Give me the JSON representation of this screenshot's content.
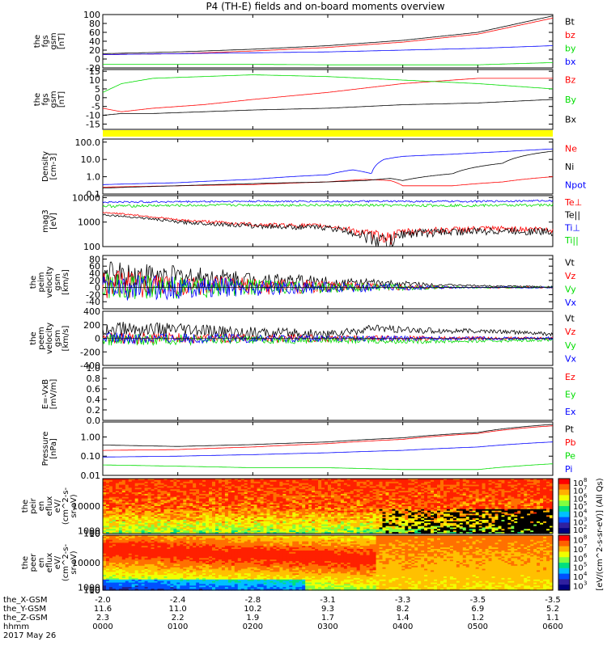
{
  "title": "P4 (TH-E) fields and on-board moments overview",
  "chart_data": [
    {
      "type": "line",
      "ylabel": [
        "the",
        "fgs",
        "gsm",
        "[nT]"
      ],
      "ylim": [
        -20,
        100
      ],
      "yticks": [
        "100",
        "80",
        "60",
        "40",
        "20",
        "0",
        "-20"
      ],
      "ytick_values": [
        100,
        80,
        60,
        40,
        20,
        0,
        -20
      ],
      "series": [
        {
          "name": "Bt",
          "color": "#000000",
          "x": [
            0,
            60,
            120,
            180,
            240,
            300,
            360
          ],
          "values": [
            12,
            16,
            22,
            30,
            42,
            60,
            97
          ]
        },
        {
          "name": "bz",
          "color": "#ff0000",
          "x": [
            0,
            60,
            120,
            180,
            240,
            300,
            360
          ],
          "values": [
            10,
            12,
            18,
            26,
            38,
            56,
            92
          ]
        },
        {
          "name": "by",
          "color": "#00dd00",
          "x": [
            0,
            60,
            120,
            180,
            240,
            300,
            360
          ],
          "values": [
            -12,
            -12,
            -12,
            -13,
            -13,
            -13,
            -8
          ]
        },
        {
          "name": "bx",
          "color": "#0000ff",
          "x": [
            0,
            60,
            120,
            180,
            240,
            300,
            360
          ],
          "values": [
            10,
            12,
            14,
            16,
            20,
            24,
            30
          ]
        }
      ]
    },
    {
      "type": "line",
      "ylabel": [
        "the",
        "fgs",
        "gsm",
        "[nT]"
      ],
      "ylim": [
        -18,
        16
      ],
      "yticks": [
        "15",
        "10",
        "5",
        "0",
        "-5",
        "-10",
        "-15"
      ],
      "ytick_values": [
        15,
        10,
        5,
        0,
        -5,
        -10,
        -15
      ],
      "series": [
        {
          "name": "Bz",
          "color": "#ff0000",
          "x": [
            0,
            15,
            40,
            80,
            120,
            180,
            240,
            300,
            360
          ],
          "values": [
            -6,
            -8,
            -6,
            -4,
            -1,
            3,
            8,
            11,
            11
          ]
        },
        {
          "name": "By",
          "color": "#00dd00",
          "x": [
            0,
            15,
            40,
            80,
            120,
            180,
            240,
            300,
            360
          ],
          "values": [
            3,
            8,
            11,
            12,
            13,
            12,
            10,
            8,
            5
          ]
        },
        {
          "name": "Bx",
          "color": "#000000",
          "x": [
            0,
            15,
            40,
            80,
            120,
            180,
            240,
            300,
            360
          ],
          "values": [
            -10,
            -9,
            -9,
            -8,
            -7,
            -6,
            -4,
            -3,
            -1
          ]
        }
      ]
    },
    {
      "type": "line",
      "scale": "log",
      "ylabel": [
        "Density",
        "[cm-3]"
      ],
      "ylim": [
        0.1,
        150
      ],
      "yticks": [
        "100.0",
        "10.0",
        "1.0",
        "0.1"
      ],
      "ytick_values": [
        100,
        10,
        1,
        0.1
      ],
      "series": [
        {
          "name": "Ne",
          "color": "#ff0000",
          "x": [
            0,
            60,
            120,
            180,
            210,
            230,
            240,
            280,
            320,
            360
          ],
          "values": [
            0.25,
            0.3,
            0.35,
            0.5,
            0.7,
            0.6,
            0.3,
            0.3,
            0.5,
            1.0
          ]
        },
        {
          "name": "Ni",
          "color": "#000000",
          "x": [
            0,
            60,
            120,
            180,
            210,
            230,
            240,
            280,
            320,
            360
          ],
          "values": [
            0.22,
            0.3,
            0.4,
            0.5,
            0.6,
            0.8,
            0.6,
            1.5,
            6,
            30
          ]
        },
        {
          "name": "Npot",
          "color": "#0000ff",
          "x": [
            0,
            60,
            120,
            180,
            200,
            215,
            225,
            240,
            280,
            320,
            360
          ],
          "values": [
            0.35,
            0.45,
            0.7,
            1.3,
            2.5,
            1.5,
            10,
            15,
            20,
            28,
            40
          ]
        }
      ]
    },
    {
      "type": "line",
      "scale": "log",
      "ylabel": [
        "mag3",
        "[eV]"
      ],
      "ylim": [
        100,
        12000
      ],
      "yticks": [
        "10000",
        "1000",
        "100"
      ],
      "ytick_values": [
        10000,
        1000,
        100
      ],
      "series": [
        {
          "name": "Te⊥",
          "color": "#ff0000",
          "x": [
            0,
            60,
            120,
            180,
            210,
            230,
            240,
            280,
            320,
            360
          ],
          "values": [
            2500,
            1200,
            800,
            700,
            350,
            250,
            400,
            500,
            550,
            500
          ]
        },
        {
          "name": "Te||",
          "color": "#000000",
          "x": [
            0,
            60,
            120,
            180,
            210,
            230,
            240,
            280,
            320,
            360
          ],
          "values": [
            2000,
            1000,
            700,
            600,
            280,
            150,
            350,
            420,
            450,
            420
          ]
        },
        {
          "name": "Ti⊥",
          "color": "#0000ff",
          "x": [
            0,
            60,
            120,
            180,
            240,
            300,
            360
          ],
          "values": [
            6500,
            6800,
            7000,
            7000,
            7000,
            7000,
            7500
          ]
        },
        {
          "name": "Ti||",
          "color": "#00dd00",
          "x": [
            0,
            60,
            120,
            180,
            240,
            300,
            360
          ],
          "values": [
            4500,
            4800,
            5000,
            4900,
            4800,
            4800,
            5000
          ]
        }
      ]
    },
    {
      "type": "line",
      "ylabel": [
        "the",
        "peim",
        "velocity",
        "gsm",
        "[km/s]"
      ],
      "ylim": [
        -60,
        90
      ],
      "yticks": [
        "80",
        "60",
        "40",
        "20",
        "0",
        "-20",
        "-40"
      ],
      "ytick_values": [
        80,
        60,
        40,
        20,
        0,
        -20,
        -40
      ],
      "series": [
        {
          "name": "Vt",
          "color": "#000000",
          "x": [
            0,
            60,
            120,
            180,
            240,
            300,
            360
          ],
          "values": [
            40,
            30,
            22,
            15,
            10,
            5,
            2
          ]
        },
        {
          "name": "Vz",
          "color": "#ff0000",
          "x": [
            0,
            60,
            120,
            180,
            240,
            300,
            360
          ],
          "values": [
            10,
            5,
            3,
            2,
            1,
            0,
            0
          ]
        },
        {
          "name": "Vy",
          "color": "#00dd00",
          "x": [
            0,
            60,
            120,
            180,
            240,
            300,
            360
          ],
          "values": [
            0,
            0,
            0,
            0,
            0,
            0,
            0
          ]
        },
        {
          "name": "Vx",
          "color": "#0000ff",
          "x": [
            0,
            60,
            120,
            180,
            240,
            300,
            360
          ],
          "values": [
            0,
            0,
            0,
            0,
            0,
            0,
            0
          ]
        }
      ]
    },
    {
      "type": "line",
      "ylabel": [
        "the",
        "peem",
        "velocity",
        "gsm",
        "[km/s]"
      ],
      "ylim": [
        -400,
        400
      ],
      "yticks": [
        "400",
        "200",
        "0",
        "-200",
        "-400"
      ],
      "ytick_values": [
        400,
        200,
        0,
        -200,
        -400
      ],
      "series": [
        {
          "name": "Vt",
          "color": "#000000",
          "x": [
            0,
            60,
            120,
            180,
            220,
            240,
            280,
            320,
            360
          ],
          "values": [
            150,
            120,
            80,
            60,
            150,
            120,
            110,
            100,
            60
          ]
        },
        {
          "name": "Vz",
          "color": "#ff0000",
          "x": [
            0,
            60,
            120,
            180,
            240,
            300,
            360
          ],
          "values": [
            0,
            0,
            0,
            0,
            0,
            0,
            0
          ]
        },
        {
          "name": "Vy",
          "color": "#00dd00",
          "x": [
            0,
            60,
            120,
            180,
            240,
            300,
            360
          ],
          "values": [
            -20,
            -20,
            -20,
            -20,
            -40,
            -40,
            -20
          ]
        },
        {
          "name": "Vx",
          "color": "#0000ff",
          "x": [
            0,
            60,
            120,
            180,
            240,
            300,
            360
          ],
          "values": [
            0,
            0,
            0,
            0,
            0,
            0,
            0
          ]
        }
      ]
    },
    {
      "type": "line",
      "ylabel": [
        "E=-VxB",
        "[mV/m]"
      ],
      "ylim": [
        0,
        1
      ],
      "yticks": [
        "1.0",
        "0.8",
        "0.6",
        "0.4",
        "0.2",
        "0.0"
      ],
      "ytick_values": [
        1,
        0.8,
        0.6,
        0.4,
        0.2,
        0
      ],
      "series": [
        {
          "name": "Ez",
          "color": "#ff0000",
          "x": [],
          "values": []
        },
        {
          "name": "Ey",
          "color": "#00dd00",
          "x": [],
          "values": []
        },
        {
          "name": "Ex",
          "color": "#0000ff",
          "x": [],
          "values": []
        }
      ]
    },
    {
      "type": "line",
      "scale": "log",
      "ylabel": [
        "Pressure",
        "[nPa]"
      ],
      "ylim": [
        0.01,
        6
      ],
      "yticks": [
        "1.00",
        "0.10",
        "0.01"
      ],
      "ytick_values": [
        1,
        0.1,
        0.01
      ],
      "series": [
        {
          "name": "Pt",
          "color": "#000000",
          "x": [
            0,
            60,
            120,
            180,
            240,
            300,
            360
          ],
          "values": [
            0.38,
            0.32,
            0.4,
            0.55,
            0.9,
            1.7,
            4.5
          ]
        },
        {
          "name": "Pb",
          "color": "#ff0000",
          "x": [
            0,
            60,
            120,
            180,
            240,
            300,
            360
          ],
          "values": [
            0.2,
            0.22,
            0.3,
            0.45,
            0.75,
            1.5,
            3.8
          ]
        },
        {
          "name": "Pe",
          "color": "#00dd00",
          "x": [
            0,
            60,
            120,
            180,
            240,
            300,
            360
          ],
          "values": [
            0.035,
            0.03,
            0.025,
            0.025,
            0.02,
            0.02,
            0.04
          ]
        },
        {
          "name": "Pi",
          "color": "#0000ff",
          "x": [
            0,
            60,
            120,
            180,
            240,
            300,
            360
          ],
          "values": [
            0.09,
            0.1,
            0.12,
            0.15,
            0.2,
            0.3,
            0.55
          ]
        }
      ]
    },
    {
      "type": "heatmap",
      "ylabel": [
        "the",
        "peir",
        "en",
        "eflux",
        "eV/",
        "(cm^2-s-",
        "sr-eV)"
      ],
      "ylim": [
        6,
        20000
      ],
      "yticks": [
        "10000",
        "1000",
        "100",
        "10"
      ],
      "ytick_values": [
        10000,
        1000,
        100,
        10
      ],
      "colorbar_label": "[eV/(cm^2-s-sr-eV)] (All Qs)",
      "colorbar_ticks": [
        "10^8",
        "10^7",
        "10^6",
        "10^5",
        "10^4",
        "10^3",
        "10^2"
      ]
    },
    {
      "type": "heatmap",
      "ylabel": [
        "the",
        "peer",
        "en",
        "eflux",
        "eV/",
        "(cm^2-s-",
        "sr-eV)"
      ],
      "ylim": [
        6,
        20000
      ],
      "yticks": [
        "10000",
        "1000",
        "100",
        "10"
      ],
      "ytick_values": [
        10000,
        1000,
        100,
        10
      ],
      "colorbar_label": "[eV/(cm^2-s-sr-eV)]",
      "colorbar_ticks": [
        "10^8",
        "10^7",
        "10^6",
        "10^5",
        "10^4",
        "10^3"
      ]
    }
  ],
  "time_axis": {
    "start": "0000",
    "end": "0600",
    "rows": [
      {
        "label": "the_X-GSM",
        "values": [
          "-2.0",
          "-2.4",
          "-2.8",
          "-3.1",
          "-3.3",
          "-3.5",
          "-3.5"
        ]
      },
      {
        "label": "the_Y-GSM",
        "values": [
          "11.6",
          "11.0",
          "10.2",
          "9.3",
          "8.2",
          "6.9",
          "5.2"
        ]
      },
      {
        "label": "the_Z-GSM",
        "values": [
          "2.3",
          "2.2",
          "1.9",
          "1.7",
          "1.4",
          "1.2",
          "1.1"
        ]
      },
      {
        "label": "hhmm",
        "values": [
          "0000",
          "0100",
          "0200",
          "0300",
          "0400",
          "0500",
          "0600"
        ]
      }
    ],
    "date": "2017 May 26"
  }
}
